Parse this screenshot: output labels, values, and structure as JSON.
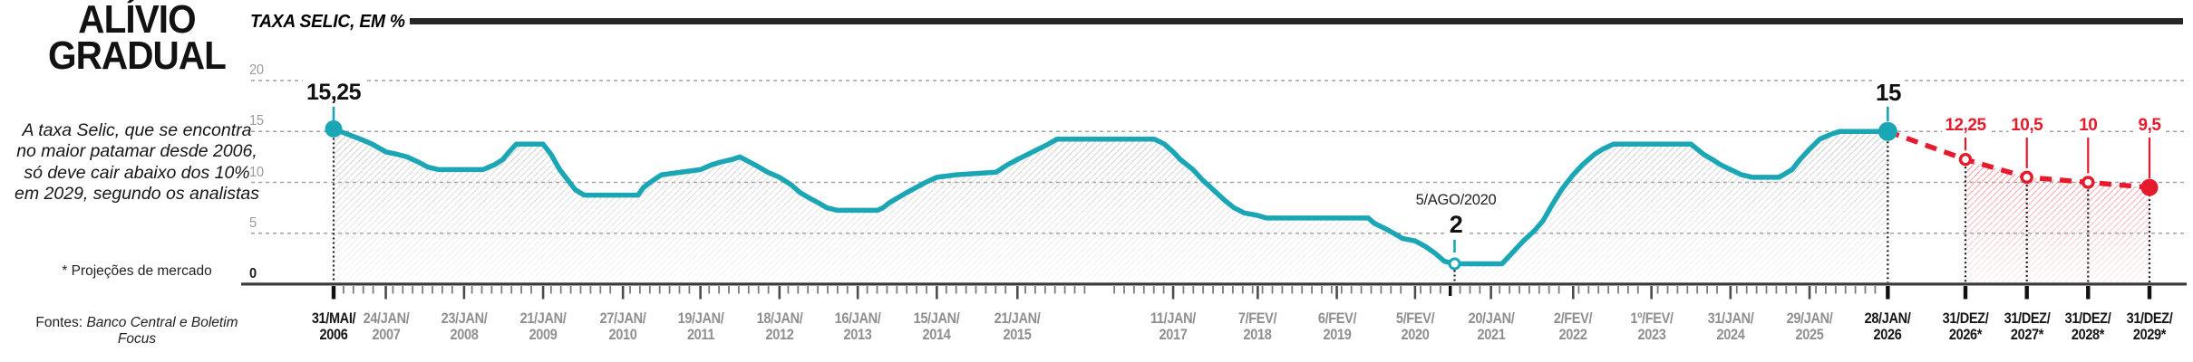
{
  "sidebar": {
    "title_line1": "ALÍVIO",
    "title_line2": "GRADUAL",
    "description": "A taxa Selic, que se encontra no maior patamar desde 2006, só deve cair abaixo dos 10% em 2029, segundo os analistas",
    "projection_note": "* Projeções de mercado",
    "sources_label": "Fontes:",
    "sources_value": "Banco Central e Boletim Focus"
  },
  "chart_header": {
    "title": "TAXA SELIC, EM %"
  },
  "chart_data": {
    "type": "line",
    "title": "TAXA SELIC, EM %",
    "ylim": [
      0,
      20
    ],
    "y_ticks": [
      0,
      5,
      10,
      15,
      20
    ],
    "grid": "horizontal-dashed",
    "legend": "none",
    "colors": {
      "historical": "#1ba6b5",
      "projection": "#e51a2c",
      "hatch_gray": "#cfcfcf",
      "hatch_red": "#f0868f",
      "axis": "#3a3a3a",
      "grid_gray": "#a2a2a2",
      "label_gray": "#8f8f8f",
      "label_black": "#161616",
      "header_bar": "#272727"
    },
    "series": [
      {
        "name": "historical",
        "style": "solid",
        "points": [
          [
            2006.41,
            15.25
          ],
          [
            2006.58,
            14.75
          ],
          [
            2006.75,
            14.25
          ],
          [
            2006.9,
            13.75
          ],
          [
            2007.07,
            13
          ],
          [
            2007.22,
            12.75
          ],
          [
            2007.34,
            12.5
          ],
          [
            2007.48,
            12
          ],
          [
            2007.6,
            11.5
          ],
          [
            2007.74,
            11.25
          ],
          [
            2008.3,
            11.25
          ],
          [
            2008.45,
            11.75
          ],
          [
            2008.55,
            12.25
          ],
          [
            2008.63,
            13
          ],
          [
            2008.72,
            13.75
          ],
          [
            2009.06,
            13.75
          ],
          [
            2009.16,
            12.75
          ],
          [
            2009.27,
            11.25
          ],
          [
            2009.37,
            10.25
          ],
          [
            2009.47,
            9.25
          ],
          [
            2009.58,
            8.75
          ],
          [
            2010.26,
            8.75
          ],
          [
            2010.33,
            9.5
          ],
          [
            2010.46,
            10.25
          ],
          [
            2010.56,
            10.75
          ],
          [
            2011.05,
            11.25
          ],
          [
            2011.2,
            11.75
          ],
          [
            2011.31,
            12
          ],
          [
            2011.45,
            12.25
          ],
          [
            2011.55,
            12.5
          ],
          [
            2011.67,
            12
          ],
          [
            2011.79,
            11.5
          ],
          [
            2011.9,
            11
          ],
          [
            2012.05,
            10.5
          ],
          [
            2012.2,
            9.75
          ],
          [
            2012.31,
            9
          ],
          [
            2012.42,
            8.5
          ],
          [
            2012.54,
            8
          ],
          [
            2012.65,
            7.5
          ],
          [
            2012.78,
            7.25
          ],
          [
            2013.29,
            7.25
          ],
          [
            2013.36,
            7.5
          ],
          [
            2013.44,
            8
          ],
          [
            2013.55,
            8.5
          ],
          [
            2013.66,
            9
          ],
          [
            2013.78,
            9.5
          ],
          [
            2013.9,
            10
          ],
          [
            2014.04,
            10.5
          ],
          [
            2014.29,
            10.75
          ],
          [
            2014.79,
            11
          ],
          [
            2014.94,
            11.75
          ],
          [
            2015.06,
            12.25
          ],
          [
            2015.19,
            12.75
          ],
          [
            2015.32,
            13.25
          ],
          [
            2015.45,
            13.75
          ],
          [
            2015.56,
            14.25
          ],
          [
            2016.79,
            14.25
          ],
          [
            2016.86,
            14
          ],
          [
            2016.92,
            13.75
          ],
          [
            2017.03,
            13
          ],
          [
            2017.12,
            12.25
          ],
          [
            2017.28,
            11.25
          ],
          [
            2017.4,
            10.25
          ],
          [
            2017.54,
            9.25
          ],
          [
            2017.68,
            8.25
          ],
          [
            2017.8,
            7.5
          ],
          [
            2017.93,
            7
          ],
          [
            2018.1,
            6.75
          ],
          [
            2018.21,
            6.5
          ],
          [
            2019.5,
            6.5
          ],
          [
            2019.57,
            6
          ],
          [
            2019.7,
            5.5
          ],
          [
            2019.82,
            5
          ],
          [
            2019.93,
            4.5
          ],
          [
            2020.09,
            4.25
          ],
          [
            2020.21,
            3.75
          ],
          [
            2020.35,
            3
          ],
          [
            2020.46,
            2.25
          ],
          [
            2020.59,
            2
          ],
          [
            2021.19,
            2
          ],
          [
            2021.28,
            2.75
          ],
          [
            2021.37,
            3.5
          ],
          [
            2021.46,
            4.25
          ],
          [
            2021.6,
            5.25
          ],
          [
            2021.71,
            6.25
          ],
          [
            2021.82,
            7.75
          ],
          [
            2021.94,
            9.25
          ],
          [
            2022.09,
            10.75
          ],
          [
            2022.21,
            11.75
          ],
          [
            2022.36,
            12.75
          ],
          [
            2022.46,
            13.25
          ],
          [
            2022.6,
            13.75
          ],
          [
            2023.58,
            13.75
          ],
          [
            2023.66,
            13.25
          ],
          [
            2023.74,
            12.75
          ],
          [
            2023.85,
            12.25
          ],
          [
            2023.95,
            11.75
          ],
          [
            2024.08,
            11.25
          ],
          [
            2024.22,
            10.75
          ],
          [
            2024.36,
            10.5
          ],
          [
            2024.69,
            10.5
          ],
          [
            2024.75,
            10.75
          ],
          [
            2024.86,
            11.25
          ],
          [
            2024.96,
            12.25
          ],
          [
            2025.08,
            13.25
          ],
          [
            2025.21,
            14.25
          ],
          [
            2025.36,
            14.75
          ],
          [
            2025.46,
            15
          ],
          [
            2026.07,
            15
          ]
        ]
      },
      {
        "name": "projection",
        "style": "dashed",
        "points": [
          {
            "date": "31/DEZ/2026",
            "value": 12.25,
            "label": "12,25"
          },
          {
            "date": "31/DEZ/2027",
            "value": 10.5,
            "label": "10,5"
          },
          {
            "date": "31/DEZ/2028",
            "value": 10,
            "label": "10"
          },
          {
            "date": "31/DEZ/2029",
            "value": 9.5,
            "label": "9,5"
          }
        ]
      }
    ],
    "annotations": {
      "start": {
        "label": "15,25",
        "t": 2006.41,
        "value": 15.25
      },
      "end": {
        "label": "15",
        "t": 2026.07,
        "value": 15
      },
      "low": {
        "date_label": "5/AGO/2020",
        "label": "2",
        "t": 2020.59,
        "value": 2
      }
    },
    "x_axis": {
      "labels": [
        {
          "line1": "31/MAI/",
          "line2": "2006",
          "t": 2006.41,
          "emphasis": true
        },
        {
          "line1": "24/JAN/",
          "line2": "2007",
          "t": 2007.07
        },
        {
          "line1": "23/JAN/",
          "line2": "2008",
          "t": 2008.06
        },
        {
          "line1": "21/JAN/",
          "line2": "2009",
          "t": 2009.06
        },
        {
          "line1": "27/JAN/",
          "line2": "2010",
          "t": 2010.07
        },
        {
          "line1": "19/JAN/",
          "line2": "2011",
          "t": 2011.05
        },
        {
          "line1": "18/JAN/",
          "line2": "2012",
          "t": 2012.05
        },
        {
          "line1": "16/JAN/",
          "line2": "2013",
          "t": 2013.04
        },
        {
          "line1": "15/JAN/",
          "line2": "2014",
          "t": 2014.04
        },
        {
          "line1": "21/JAN/",
          "line2": "2015",
          "t": 2015.06
        },
        {
          "line1": "11/JAN/",
          "line2": "2017",
          "t": 2017.03
        },
        {
          "line1": "7/FEV/",
          "line2": "2018",
          "t": 2018.1
        },
        {
          "line1": "6/FEV/",
          "line2": "2019",
          "t": 2019.1
        },
        {
          "line1": "5/FEV/",
          "line2": "2020",
          "t": 2020.09
        },
        {
          "line1": "20/JAN/",
          "line2": "2021",
          "t": 2021.05
        },
        {
          "line1": "2/FEV/",
          "line2": "2022",
          "t": 2022.09
        },
        {
          "line1": "1º/FEV/",
          "line2": "2023",
          "t": 2023.08
        },
        {
          "line1": "31/JAN/",
          "line2": "2024",
          "t": 2024.08
        },
        {
          "line1": "29/JAN/",
          "line2": "2025",
          "t": 2025.08
        },
        {
          "line1": "28/JAN/",
          "line2": "2026",
          "t": 2026.07,
          "emphasis": true
        },
        {
          "line1": "31/DEZ/",
          "line2": "2026*",
          "proj": 0,
          "emphasis": true
        },
        {
          "line1": "31/DEZ/",
          "line2": "2027*",
          "proj": 1,
          "emphasis": true
        },
        {
          "line1": "31/DEZ/",
          "line2": "2028*",
          "proj": 2,
          "emphasis": true
        },
        {
          "line1": "31/DEZ/",
          "line2": "2029*",
          "proj": 3,
          "emphasis": true
        }
      ]
    }
  }
}
